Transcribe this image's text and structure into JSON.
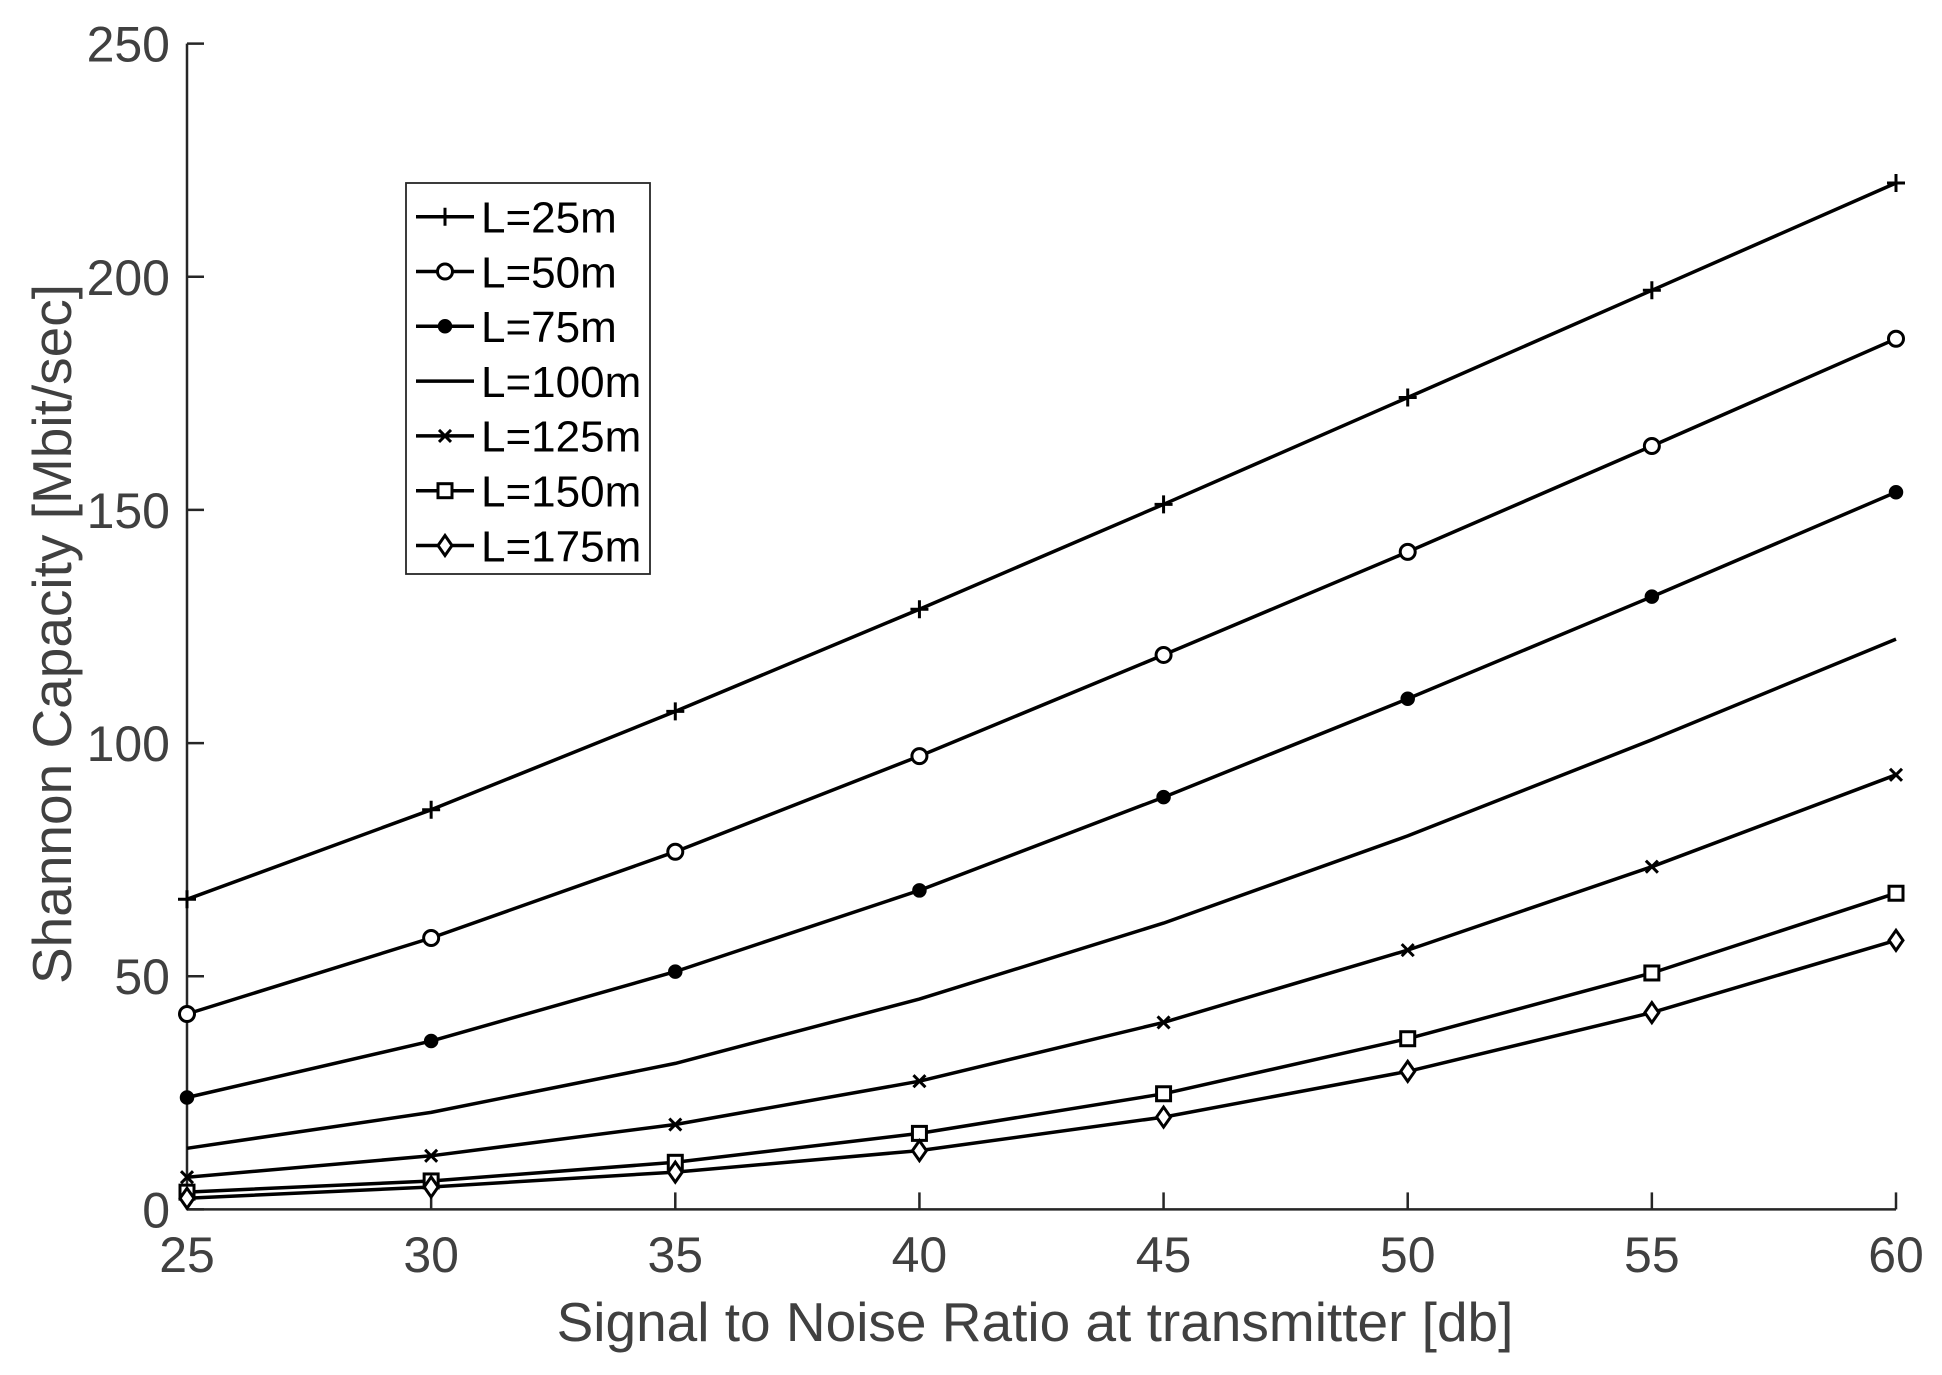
{
  "chart_data": {
    "type": "line",
    "xlabel": "Signal to Noise Ratio at transmitter [db]",
    "ylabel": "Shannon Capacity [Mbit/sec]",
    "xlim": [
      25,
      60
    ],
    "ylim": [
      0,
      250
    ],
    "xticks": [
      25,
      30,
      35,
      40,
      45,
      50,
      55,
      60
    ],
    "yticks": [
      0,
      50,
      100,
      150,
      200,
      250
    ],
    "grid": false,
    "legend_position": "upper-left",
    "x": [
      25,
      30,
      35,
      40,
      45,
      50,
      55,
      60
    ],
    "series": [
      {
        "name": "L=25m",
        "marker": "plus",
        "values": [
          66.5,
          85.7,
          106.8,
          128.7,
          151.2,
          174.1,
          197.1,
          220.1
        ]
      },
      {
        "name": "L=50m",
        "marker": "circle",
        "values": [
          41.9,
          58.2,
          76.7,
          97.2,
          118.9,
          141.0,
          163.7,
          186.7
        ]
      },
      {
        "name": "L=75m",
        "marker": "dot",
        "values": [
          24.0,
          36.1,
          51.0,
          68.4,
          88.4,
          109.5,
          131.4,
          153.8
        ]
      },
      {
        "name": "L=100m",
        "marker": "none",
        "values": [
          13.1,
          20.8,
          31.3,
          45.1,
          61.4,
          80.1,
          100.7,
          122.3
        ]
      },
      {
        "name": "L=125m",
        "marker": "x",
        "values": [
          6.9,
          11.5,
          18.2,
          27.5,
          40.1,
          55.6,
          73.5,
          93.2
        ]
      },
      {
        "name": "L=150m",
        "marker": "square",
        "values": [
          3.7,
          6.1,
          10.1,
          16.3,
          24.8,
          36.6,
          50.7,
          67.8
        ]
      },
      {
        "name": "L=175m",
        "marker": "diamond",
        "values": [
          2.4,
          4.8,
          8.0,
          12.6,
          19.8,
          29.6,
          42.2,
          57.7
        ]
      }
    ]
  },
  "colors": {
    "line": "#000000",
    "axis_line": "#262626",
    "axis_text": "#404040",
    "legend_border": "#262626",
    "background": "#ffffff"
  }
}
